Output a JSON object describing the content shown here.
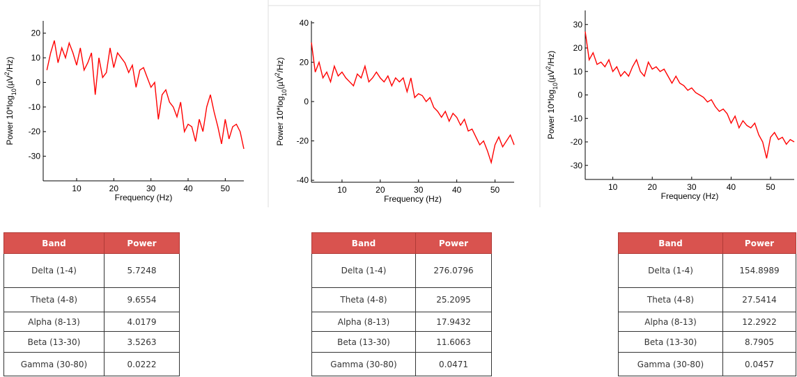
{
  "chart_data": [
    {
      "type": "line",
      "xlabel": "Frequency (Hz)",
      "ylabel": [
        "Power 10*log",
        "10",
        "(µV",
        "2",
        "/Hz)"
      ],
      "x": [
        2,
        3,
        4,
        5,
        6,
        7,
        8,
        9,
        10,
        11,
        12,
        13,
        14,
        15,
        16,
        17,
        18,
        19,
        20,
        21,
        22,
        23,
        24,
        25,
        26,
        27,
        28,
        29,
        30,
        31,
        32,
        33,
        34,
        35,
        36,
        37,
        38,
        39,
        40,
        41,
        42,
        43,
        44,
        45,
        46,
        47,
        48,
        49,
        50,
        51,
        52,
        53,
        54,
        55
      ],
      "series": [
        {
          "color": "#ff0000",
          "values": [
            5,
            12,
            17,
            8,
            14,
            10,
            16,
            12,
            7,
            14,
            5,
            8,
            12,
            -5,
            10,
            2,
            4,
            14,
            6,
            12,
            10,
            8,
            4,
            7,
            -2,
            5,
            6,
            2,
            -2,
            0,
            -15,
            -5,
            -3,
            -8,
            -10,
            -14,
            -8,
            -20,
            -17,
            -18,
            -24,
            -15,
            -20,
            -10,
            -5,
            -12,
            -18,
            -25,
            -15,
            -23,
            -18,
            -17,
            -20,
            -27
          ]
        }
      ],
      "xlim": [
        1,
        55
      ],
      "xticks": [
        10,
        20,
        30,
        40,
        50
      ],
      "ylim": [
        -40,
        25
      ],
      "yticks": [
        -30,
        -20,
        -10,
        0,
        10,
        20
      ]
    },
    {
      "type": "line",
      "xlabel": "Frequency (Hz)",
      "ylabel": [
        "Power 10*log",
        "10",
        "(µV",
        "2",
        "/Hz)"
      ],
      "x": [
        2,
        3,
        4,
        5,
        6,
        7,
        8,
        9,
        10,
        11,
        12,
        13,
        14,
        15,
        16,
        17,
        18,
        19,
        20,
        21,
        22,
        23,
        24,
        25,
        26,
        27,
        28,
        29,
        30,
        31,
        32,
        33,
        34,
        35,
        36,
        37,
        38,
        39,
        40,
        41,
        42,
        43,
        44,
        45,
        46,
        47,
        48,
        49,
        50,
        51,
        52,
        53,
        54,
        55
      ],
      "series": [
        {
          "color": "#ff0000",
          "values": [
            30,
            15,
            20,
            12,
            15,
            10,
            18,
            13,
            15,
            12,
            10,
            8,
            14,
            12,
            18,
            10,
            12,
            15,
            12,
            10,
            13,
            8,
            12,
            10,
            12,
            5,
            12,
            2,
            4,
            3,
            0,
            2,
            -3,
            -5,
            -8,
            -5,
            -10,
            -6,
            -8,
            -12,
            -9,
            -15,
            -14,
            -18,
            -22,
            -20,
            -25,
            -31,
            -22,
            -18,
            -23,
            -20,
            -17,
            -22
          ]
        }
      ],
      "xlim": [
        2,
        55
      ],
      "xticks": [
        10,
        20,
        30,
        40,
        50
      ],
      "ylim": [
        -41,
        41
      ],
      "yticks": [
        -40,
        -20,
        0,
        20,
        40
      ]
    },
    {
      "type": "line",
      "xlabel": "Frequency (Hz)",
      "ylabel": [
        "Power 10*log",
        "10",
        "(µV",
        "2",
        "/Hz)"
      ],
      "x": [
        3,
        4,
        5,
        6,
        7,
        8,
        9,
        10,
        11,
        12,
        13,
        14,
        15,
        16,
        17,
        18,
        19,
        20,
        21,
        22,
        23,
        24,
        25,
        26,
        27,
        28,
        29,
        30,
        31,
        32,
        33,
        34,
        35,
        36,
        37,
        38,
        39,
        40,
        41,
        42,
        43,
        44,
        45,
        46,
        47,
        48,
        49,
        50,
        51,
        52,
        53,
        54,
        55,
        56
      ],
      "series": [
        {
          "color": "#ff0000",
          "values": [
            27,
            15,
            18,
            13,
            14,
            12,
            15,
            10,
            12,
            8,
            10,
            8,
            12,
            15,
            10,
            8,
            14,
            11,
            12,
            10,
            11,
            8,
            5,
            8,
            5,
            4,
            2,
            3,
            1,
            0,
            -1,
            -3,
            -2,
            -5,
            -7,
            -6,
            -8,
            -12,
            -9,
            -14,
            -11,
            -13,
            -14,
            -12,
            -17,
            -20,
            -27,
            -18,
            -16,
            -19,
            -18,
            -21,
            -19,
            -20
          ]
        }
      ],
      "xlim": [
        3,
        56
      ],
      "xticks": [
        10,
        20,
        30,
        40,
        50
      ],
      "ylim": [
        -36,
        36
      ],
      "yticks": [
        -30,
        -20,
        -10,
        0,
        10,
        20,
        30
      ]
    }
  ],
  "tables": [
    {
      "header": [
        "Band",
        "Power"
      ],
      "rows": [
        [
          "Delta (1-4)",
          "5.7248"
        ],
        [
          "Theta (4-8)",
          "9.6554"
        ],
        [
          "Alpha (8-13)",
          "4.0179"
        ],
        [
          "Beta (13-30)",
          "3.5263"
        ],
        [
          "Gamma (30-80)",
          "0.0222"
        ]
      ]
    },
    {
      "header": [
        "Band",
        "Power"
      ],
      "rows": [
        [
          "Delta (1-4)",
          "276.0796"
        ],
        [
          "Theta (4-8)",
          "25.2095"
        ],
        [
          "Alpha (8-13)",
          "17.9432"
        ],
        [
          "Beta (13-30)",
          "11.6063"
        ],
        [
          "Gamma (30-80)",
          "0.0471"
        ]
      ]
    },
    {
      "header": [
        "Band",
        "Power"
      ],
      "rows": [
        [
          "Delta (1-4)",
          "154.8989"
        ],
        [
          "Theta (4-8)",
          "27.5414"
        ],
        [
          "Alpha (8-13)",
          "12.2922"
        ],
        [
          "Beta (13-30)",
          "8.7905"
        ],
        [
          "Gamma (30-80)",
          "0.0457"
        ]
      ]
    }
  ]
}
